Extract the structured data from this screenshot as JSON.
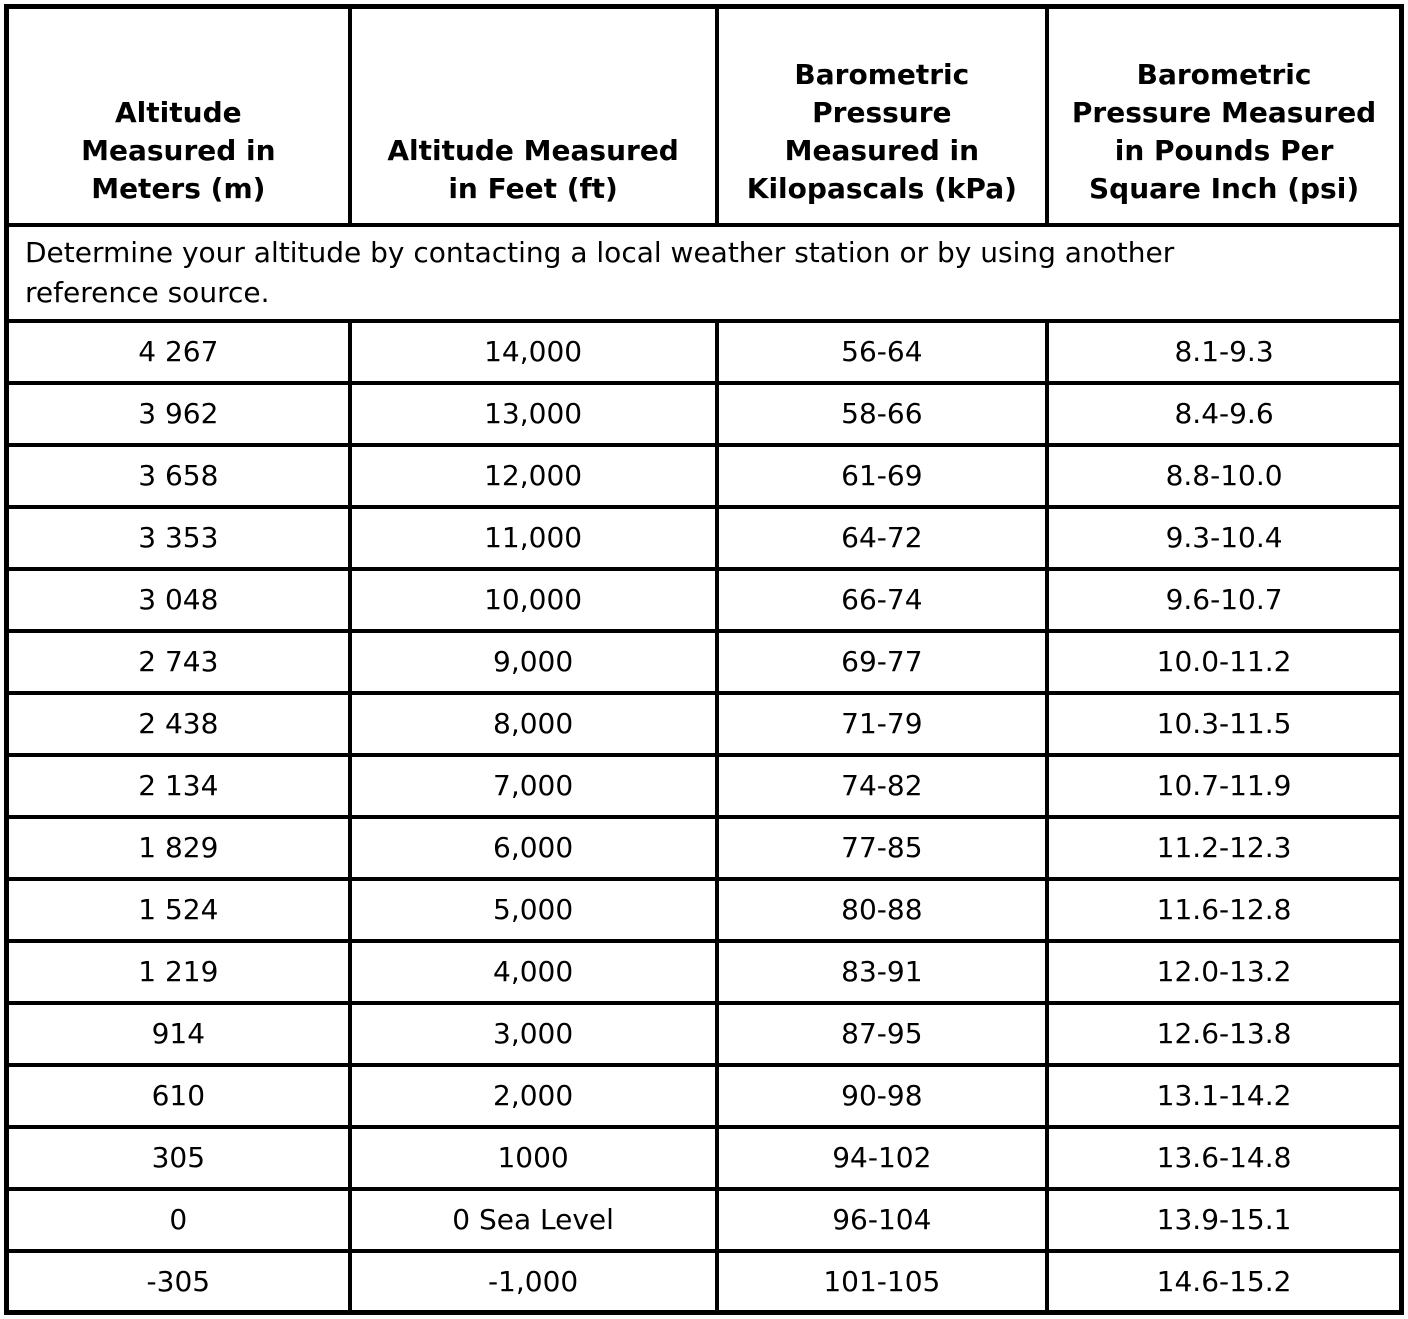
{
  "table": {
    "headers": [
      "Altitude\nMeasured in\nMeters (m)",
      "Altitude Measured\nin Feet (ft)",
      "Barometric\nPressure\nMeasured in\nKilopascals (kPa)",
      "Barometric\nPressure Measured\nin Pounds Per\nSquare Inch (psi)"
    ],
    "note": "Determine your altitude by contacting a local weather station or by using another\nreference source.",
    "rows": [
      [
        "4 267",
        "14,000",
        "56-64",
        "8.1-9.3"
      ],
      [
        "3 962",
        "13,000",
        "58-66",
        "8.4-9.6"
      ],
      [
        "3 658",
        "12,000",
        "61-69",
        "8.8-10.0"
      ],
      [
        "3 353",
        "11,000",
        "64-72",
        "9.3-10.4"
      ],
      [
        "3 048",
        "10,000",
        "66-74",
        "9.6-10.7"
      ],
      [
        "2 743",
        "9,000",
        "69-77",
        "10.0-11.2"
      ],
      [
        "2 438",
        "8,000",
        "71-79",
        "10.3-11.5"
      ],
      [
        "2 134",
        "7,000",
        "74-82",
        "10.7-11.9"
      ],
      [
        "1 829",
        "6,000",
        "77-85",
        "11.2-12.3"
      ],
      [
        "1 524",
        "5,000",
        "80-88",
        "11.6-12.8"
      ],
      [
        "1 219",
        "4,000",
        "83-91",
        "12.0-13.2"
      ],
      [
        "914",
        "3,000",
        "87-95",
        "12.6-13.8"
      ],
      [
        "610",
        "2,000",
        "90-98",
        "13.1-14.2"
      ],
      [
        "305",
        "1000",
        "94-102",
        "13.6-14.8"
      ],
      [
        "0",
        "0 Sea Level",
        "96-104",
        "13.9-15.1"
      ],
      [
        "-305",
        "-1,000",
        "101-105",
        "14.6-15.2"
      ]
    ],
    "colors": {
      "border": "#000000",
      "background": "#ffffff",
      "text": "#000000"
    }
  }
}
